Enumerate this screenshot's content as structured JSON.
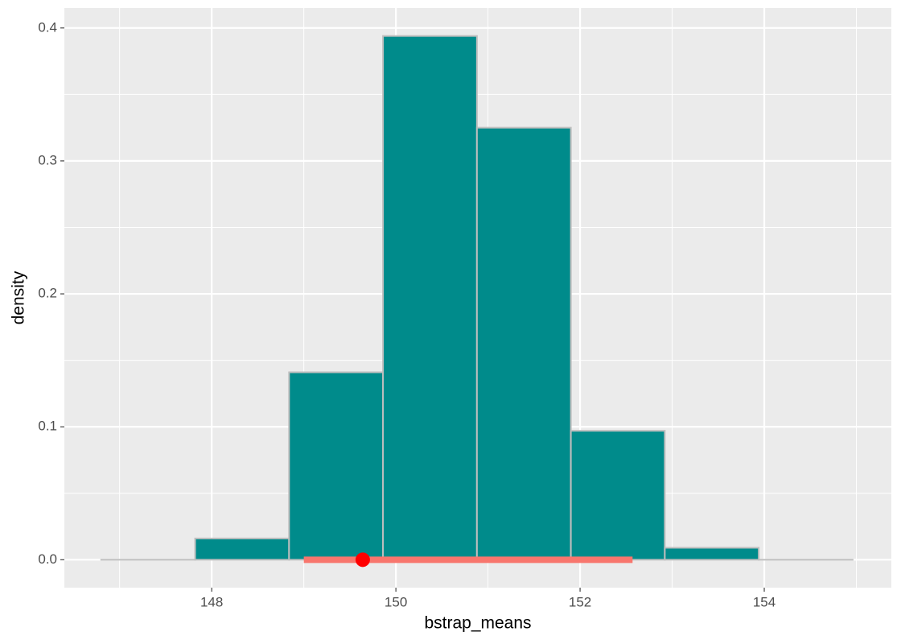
{
  "chart_data": {
    "type": "histogram",
    "x_label": "bstrap_means",
    "y_label": "density",
    "bins": [
      146.8,
      147.82,
      148.84,
      149.86,
      150.88,
      151.9,
      152.92,
      153.94,
      154.96
    ],
    "values": [
      0,
      0.016,
      0.141,
      0.394,
      0.325,
      0.097,
      0.009,
      0
    ],
    "color": "#008b8b",
    "edge_color": "#bebebe",
    "ci": [
      149.0,
      152.57
    ],
    "ci_color": "#f8766d",
    "estimate": 149.64,
    "estimate_color": "#ff0000",
    "xlim": [
      146.4,
      155.38
    ],
    "ylim": [
      -0.021,
      0.415
    ],
    "xticks": [
      148,
      150,
      152,
      154
    ],
    "yticks": [
      {
        "value": 0,
        "label": "0.0"
      },
      0.1,
      0.2,
      0.3,
      0.4
    ],
    "xminor": [
      147,
      149,
      151,
      153,
      155
    ],
    "yminor": [
      0.05,
      0.15,
      0.25,
      0.35
    ],
    "grid": true
  }
}
